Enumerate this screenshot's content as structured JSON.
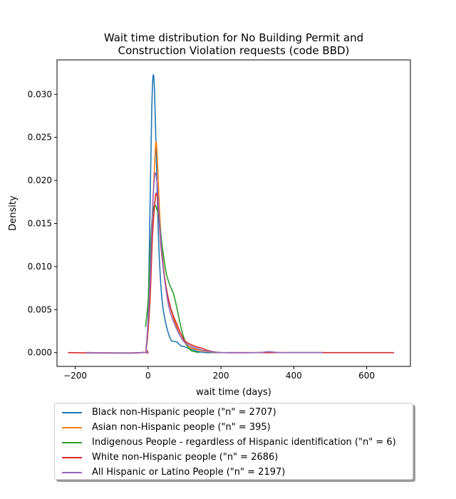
{
  "chart_data": {
    "type": "line",
    "title_lines": [
      "Wait time distribution  for No Building Permit and",
      "Construction Violation requests (code BBD)"
    ],
    "xlabel": "wait time (days)",
    "ylabel": "Density",
    "xlim": [
      -250,
      720
    ],
    "ylim": [
      -0.0016,
      0.034
    ],
    "xticks": [
      -200,
      0,
      200,
      400,
      600
    ],
    "xtick_labels": [
      "−200",
      "0",
      "200",
      "400",
      "600"
    ],
    "yticks": [
      0.0,
      0.005,
      0.01,
      0.015,
      0.02,
      0.025,
      0.03
    ],
    "ytick_labels": [
      "0.000",
      "0.005",
      "0.010",
      "0.015",
      "0.020",
      "0.025",
      "0.030"
    ],
    "grid": false,
    "legend_position": "below",
    "series": [
      {
        "name": "Black non-Hispanic people (\"n\" = 2707)",
        "color": "#1f77b4",
        "x": [
          -165,
          -20,
          -5,
          0,
          5,
          10,
          14,
          18,
          23,
          28,
          34,
          40,
          48,
          56,
          64,
          72,
          80,
          90,
          100,
          110,
          125,
          140,
          160,
          200,
          300,
          330,
          360,
          400,
          460,
          480
        ],
        "y": [
          0,
          0,
          0.0005,
          0.004,
          0.016,
          0.028,
          0.0322,
          0.03,
          0.022,
          0.014,
          0.0085,
          0.0055,
          0.0035,
          0.0022,
          0.0014,
          0.0013,
          0.0012,
          0.0008,
          0.0007,
          0.0005,
          0.0003,
          0.0001,
          0,
          0,
          0,
          0.0001,
          0,
          0,
          0,
          0
        ]
      },
      {
        "name": "Asian non-Hispanic people (\"n\" = 395)",
        "color": "#ff7f0e",
        "x": [
          -170,
          -15,
          -5,
          5,
          12,
          18,
          22,
          26,
          32,
          40,
          50,
          60,
          70,
          80,
          90,
          100,
          110,
          130,
          150,
          170,
          200,
          300,
          400,
          500
        ],
        "y": [
          0,
          0,
          0.0005,
          0.006,
          0.016,
          0.022,
          0.0245,
          0.022,
          0.016,
          0.011,
          0.0075,
          0.0055,
          0.004,
          0.0028,
          0.0018,
          0.0012,
          0.0007,
          0.0004,
          0.0002,
          0.0001,
          0,
          0,
          0,
          0
        ]
      },
      {
        "name": "Indigenous People - regardless of Hispanic identification (\"n\" = 6)",
        "color": "#2ca02c",
        "x": [
          -7,
          0,
          5,
          10,
          15,
          20,
          25,
          30,
          40,
          50,
          60,
          70,
          80,
          90,
          100,
          110,
          120,
          130,
          140
        ],
        "y": [
          0.003,
          0.006,
          0.011,
          0.015,
          0.0168,
          0.0171,
          0.0165,
          0.0155,
          0.012,
          0.0092,
          0.0078,
          0.0068,
          0.005,
          0.003,
          0.0015,
          0.0006,
          0.0002,
          0.0001,
          0
        ]
      },
      {
        "name": "White non-Hispanic people (\"n\" = 2686)",
        "color": "#d62728",
        "x": [
          -220,
          -20,
          -5,
          5,
          12,
          18,
          22,
          26,
          30,
          36,
          44,
          52,
          60,
          70,
          80,
          90,
          100,
          110,
          125,
          140,
          150,
          160,
          180,
          200,
          250,
          330,
          400,
          500,
          600,
          675
        ],
        "y": [
          0,
          0,
          0.0008,
          0.006,
          0.0135,
          0.0172,
          0.0185,
          0.0178,
          0.0155,
          0.012,
          0.009,
          0.007,
          0.0055,
          0.0042,
          0.0032,
          0.0022,
          0.0014,
          0.0011,
          0.0008,
          0.0006,
          0.0005,
          0.0003,
          0.0001,
          0,
          0,
          0,
          0,
          0,
          0,
          0
        ]
      },
      {
        "name": "All Hispanic or Latino People (\"n\" = 2197)",
        "color": "#9467bd",
        "x": [
          -170,
          -15,
          -5,
          5,
          12,
          18,
          22,
          26,
          30,
          36,
          44,
          52,
          60,
          70,
          80,
          90,
          100,
          110,
          125,
          140,
          160,
          180,
          200,
          300,
          330,
          360,
          400,
          480
        ],
        "y": [
          0,
          0,
          0.0008,
          0.008,
          0.0165,
          0.0205,
          0.0206,
          0.019,
          0.016,
          0.0125,
          0.009,
          0.0065,
          0.0048,
          0.0036,
          0.0026,
          0.0018,
          0.0012,
          0.0009,
          0.0006,
          0.0004,
          0.0002,
          0.0001,
          0,
          0,
          0.0001,
          0,
          0,
          0
        ]
      }
    ]
  }
}
